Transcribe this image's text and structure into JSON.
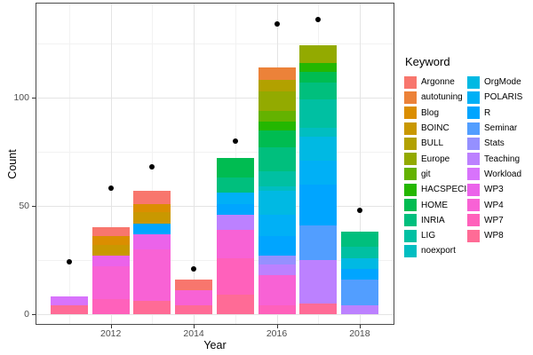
{
  "chart_data": {
    "type": "bar",
    "subtype": "stacked-bars-with-points",
    "title": "",
    "xlabel": "Year",
    "ylabel": "Count",
    "legend_title": "Keyword",
    "legend_position": "right",
    "grid": "major+minor",
    "x_ticks": [
      "2012",
      "2014",
      "2016",
      "2018"
    ],
    "y_ticks": [
      0,
      50,
      100
    ],
    "ylim": [
      -4.5,
      143
    ],
    "xlim": [
      2010.2,
      2018.8
    ],
    "point_color": "#000000",
    "keywords": [
      {
        "name": "Argonne",
        "color": "#F8766D"
      },
      {
        "name": "autotuning",
        "color": "#EC8239"
      },
      {
        "name": "Blog",
        "color": "#DB8E00"
      },
      {
        "name": "BOINC",
        "color": "#C99800"
      },
      {
        "name": "BULL",
        "color": "#B2A100"
      },
      {
        "name": "Europe",
        "color": "#93AA00"
      },
      {
        "name": "git",
        "color": "#64B200"
      },
      {
        "name": "HACSPECIS",
        "color": "#24B700"
      },
      {
        "name": "HOME",
        "color": "#00BC51"
      },
      {
        "name": "INRIA",
        "color": "#00BF7D"
      },
      {
        "name": "LIG",
        "color": "#00C0A2"
      },
      {
        "name": "noexport",
        "color": "#00BEC1"
      },
      {
        "name": "OrgMode",
        "color": "#00B9E3"
      },
      {
        "name": "POLARIS",
        "color": "#00B0F6"
      },
      {
        "name": "R",
        "color": "#00A5FF"
      },
      {
        "name": "Seminar",
        "color": "#529EFF"
      },
      {
        "name": "Stats",
        "color": "#9590FF"
      },
      {
        "name": "Teaching",
        "color": "#BC81FF"
      },
      {
        "name": "Workload",
        "color": "#D873FC"
      },
      {
        "name": "WP3",
        "color": "#EB63EA"
      },
      {
        "name": "WP4",
        "color": "#F862D5"
      },
      {
        "name": "WP7",
        "color": "#FF61BB"
      },
      {
        "name": "WP8",
        "color": "#FF6B96"
      }
    ],
    "bars": [
      {
        "year": 2011,
        "total": 8,
        "segments": [
          {
            "keyword": "WP8",
            "value": 4
          },
          {
            "keyword": "Workload",
            "value": 4
          }
        ]
      },
      {
        "year": 2012,
        "total": 40,
        "segments": [
          {
            "keyword": "WP7",
            "value": 7
          },
          {
            "keyword": "WP4",
            "value": 15
          },
          {
            "keyword": "WP3",
            "value": 5
          },
          {
            "keyword": "BOINC",
            "value": 5
          },
          {
            "keyword": "Blog",
            "value": 4
          },
          {
            "keyword": "Argonne",
            "value": 4
          }
        ]
      },
      {
        "year": 2013,
        "total": 57,
        "segments": [
          {
            "keyword": "WP8",
            "value": 6
          },
          {
            "keyword": "WP4",
            "value": 24
          },
          {
            "keyword": "WP3",
            "value": 7
          },
          {
            "keyword": "R",
            "value": 5
          },
          {
            "keyword": "BOINC",
            "value": 5
          },
          {
            "keyword": "Blog",
            "value": 4
          },
          {
            "keyword": "Argonne",
            "value": 6
          }
        ]
      },
      {
        "year": 2014,
        "total": 16,
        "segments": [
          {
            "keyword": "WP8",
            "value": 4
          },
          {
            "keyword": "WP4",
            "value": 7
          },
          {
            "keyword": "Argonne",
            "value": 5
          }
        ]
      },
      {
        "year": 2015,
        "total": 72,
        "segments": [
          {
            "keyword": "WP8",
            "value": 9
          },
          {
            "keyword": "WP7",
            "value": 17
          },
          {
            "keyword": "WP4",
            "value": 13
          },
          {
            "keyword": "Teaching",
            "value": 7
          },
          {
            "keyword": "R",
            "value": 5
          },
          {
            "keyword": "POLARIS",
            "value": 5
          },
          {
            "keyword": "INRIA",
            "value": 7
          },
          {
            "keyword": "HOME",
            "value": 9
          }
        ]
      },
      {
        "year": 2016,
        "total": 114,
        "segments": [
          {
            "keyword": "WP7",
            "value": 4
          },
          {
            "keyword": "WP4",
            "value": 14
          },
          {
            "keyword": "Teaching",
            "value": 5
          },
          {
            "keyword": "Stats",
            "value": 4
          },
          {
            "keyword": "R",
            "value": 9
          },
          {
            "keyword": "POLARIS",
            "value": 10
          },
          {
            "keyword": "OrgMode",
            "value": 11
          },
          {
            "keyword": "noexport",
            "value": 2
          },
          {
            "keyword": "LIG",
            "value": 7
          },
          {
            "keyword": "INRIA",
            "value": 11
          },
          {
            "keyword": "HOME",
            "value": 8
          },
          {
            "keyword": "HACSPECIS",
            "value": 4
          },
          {
            "keyword": "git",
            "value": 5
          },
          {
            "keyword": "Europe",
            "value": 9
          },
          {
            "keyword": "BULL",
            "value": 5
          },
          {
            "keyword": "autotuning",
            "value": 6
          }
        ]
      },
      {
        "year": 2017,
        "total": 124,
        "segments": [
          {
            "keyword": "WP8",
            "value": 5
          },
          {
            "keyword": "Teaching",
            "value": 20
          },
          {
            "keyword": "Seminar",
            "value": 16
          },
          {
            "keyword": "R",
            "value": 19
          },
          {
            "keyword": "POLARIS",
            "value": 11
          },
          {
            "keyword": "OrgMode",
            "value": 11
          },
          {
            "keyword": "noexport",
            "value": 4
          },
          {
            "keyword": "LIG",
            "value": 13
          },
          {
            "keyword": "INRIA",
            "value": 8
          },
          {
            "keyword": "HOME",
            "value": 5
          },
          {
            "keyword": "HACSPECIS",
            "value": 4
          },
          {
            "keyword": "Europe",
            "value": 8
          }
        ]
      },
      {
        "year": 2018,
        "total": 38,
        "segments": [
          {
            "keyword": "Teaching",
            "value": 4
          },
          {
            "keyword": "Seminar",
            "value": 12
          },
          {
            "keyword": "R",
            "value": 5
          },
          {
            "keyword": "OrgMode",
            "value": 5
          },
          {
            "keyword": "LIG",
            "value": 5
          },
          {
            "keyword": "INRIA",
            "value": 7
          }
        ]
      }
    ],
    "points": [
      {
        "year": 2011,
        "value": 24
      },
      {
        "year": 2012,
        "value": 58
      },
      {
        "year": 2013,
        "value": 68
      },
      {
        "year": 2014,
        "value": 21
      },
      {
        "year": 2015,
        "value": 80
      },
      {
        "year": 2016,
        "value": 134
      },
      {
        "year": 2017,
        "value": 136
      },
      {
        "year": 2018,
        "value": 48
      }
    ]
  }
}
